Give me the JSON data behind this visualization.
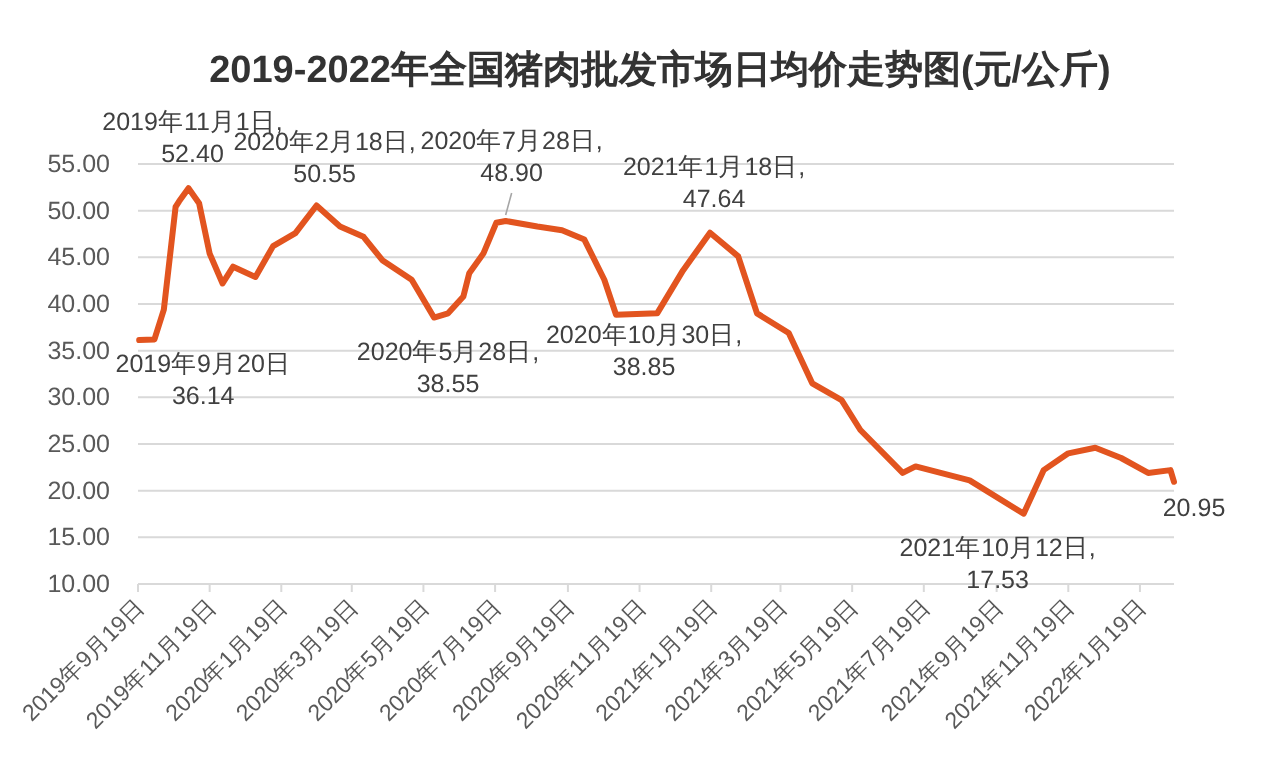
{
  "chart_data": {
    "type": "line",
    "title": "2019-2022年全国猪肉批发市场日均价走势图(元/公斤)",
    "x": [
      "2019-09-20",
      "2019-10-03",
      "2019-10-11",
      "2019-10-21",
      "2019-10-24",
      "2019-11-01",
      "2019-11-10",
      "2019-11-19",
      "2019-11-30",
      "2019-12-09",
      "2019-12-28",
      "2020-01-12",
      "2020-01-31",
      "2020-02-18",
      "2020-03-09",
      "2020-03-29",
      "2020-04-14",
      "2020-05-09",
      "2020-05-28",
      "2020-06-09",
      "2020-06-22",
      "2020-06-27",
      "2020-07-09",
      "2020-07-20",
      "2020-07-28",
      "2020-08-24",
      "2020-09-14",
      "2020-10-03",
      "2020-10-20",
      "2020-10-30",
      "2020-12-04",
      "2020-12-26",
      "2021-01-18",
      "2021-02-11",
      "2021-02-27",
      "2021-03-26",
      "2021-04-15",
      "2021-05-10",
      "2021-05-26",
      "2021-07-01",
      "2021-07-12",
      "2021-08-27",
      "2021-10-12",
      "2021-10-29",
      "2021-11-19",
      "2021-12-12",
      "2022-01-03",
      "2022-01-26",
      "2022-02-14",
      "2022-02-17"
    ],
    "series": [
      {
        "color": "#e2541f",
        "values": [
          36.14,
          36.2,
          39.4,
          50.4,
          51.0,
          52.4,
          50.8,
          45.4,
          42.2,
          44.0,
          42.9,
          46.2,
          47.6,
          50.55,
          48.3,
          47.2,
          44.7,
          42.6,
          38.55,
          39.0,
          40.8,
          43.3,
          45.4,
          48.7,
          48.9,
          48.3,
          47.9,
          46.9,
          42.6,
          38.85,
          39.0,
          43.6,
          47.64,
          45.1,
          39.0,
          36.9,
          31.5,
          29.7,
          26.5,
          21.9,
          22.6,
          21.1,
          17.53,
          22.2,
          24.0,
          24.6,
          23.5,
          21.9,
          22.2,
          20.95
        ]
      }
    ],
    "xlim": [
      "2019-09-19",
      "2022-02-17"
    ],
    "xticks": [
      {
        "value": "2019-09-19",
        "label": "2019年9月19日"
      },
      {
        "value": "2019-11-19",
        "label": "2019年11月19日"
      },
      {
        "value": "2020-01-19",
        "label": "2020年1月19日"
      },
      {
        "value": "2020-03-19",
        "label": "2020年3月19日"
      },
      {
        "value": "2020-05-19",
        "label": "2020年5月19日"
      },
      {
        "value": "2020-07-19",
        "label": "2020年7月19日"
      },
      {
        "value": "2020-09-19",
        "label": "2020年9月19日"
      },
      {
        "value": "2020-11-19",
        "label": "2020年11月19日"
      },
      {
        "value": "2021-01-19",
        "label": "2021年1月19日"
      },
      {
        "value": "2021-03-19",
        "label": "2021年3月19日"
      },
      {
        "value": "2021-05-19",
        "label": "2021年5月19日"
      },
      {
        "value": "2021-07-19",
        "label": "2021年7月19日"
      },
      {
        "value": "2021-09-19",
        "label": "2021年9月19日"
      },
      {
        "value": "2021-11-19",
        "label": "2021年11月19日"
      },
      {
        "value": "2022-01-19",
        "label": "2022年1月19日"
      }
    ],
    "ylim": [
      10,
      55
    ],
    "yticks": [
      {
        "value": 10,
        "label": "10.00"
      },
      {
        "value": 15,
        "label": "15.00"
      },
      {
        "value": 20,
        "label": "20.00"
      },
      {
        "value": 25,
        "label": "25.00"
      },
      {
        "value": 30,
        "label": "30.00"
      },
      {
        "value": 35,
        "label": "35.00"
      },
      {
        "value": 40,
        "label": "40.00"
      },
      {
        "value": 45,
        "label": "45.00"
      },
      {
        "value": 50,
        "label": "50.00"
      },
      {
        "value": 55,
        "label": "55.00"
      }
    ],
    "grid": "y",
    "marker": "none",
    "line_style": "solid",
    "annotations": [
      {
        "text": "2019年9月20日\n36.14",
        "x": "2019-09-20",
        "y": 36.14
      },
      {
        "text": "2019年11月1日,\n52.40",
        "x": "2019-11-01",
        "y": 52.4
      },
      {
        "text": "2020年2月18日,\n50.55",
        "x": "2020-02-18",
        "y": 50.55
      },
      {
        "text": "2020年5月28日,\n38.55",
        "x": "2020-05-28",
        "y": 38.55
      },
      {
        "text": "2020年7月28日,\n48.90",
        "x": "2020-07-28",
        "y": 48.9
      },
      {
        "text": "2020年10月30日,\n38.85",
        "x": "2020-10-30",
        "y": 38.85
      },
      {
        "text": "2021年1月18日,\n47.64",
        "x": "2021-01-18",
        "y": 47.64
      },
      {
        "text": "2021年10月12日,\n17.53",
        "x": "2021-10-12",
        "y": 17.53
      },
      {
        "text": "20.95",
        "x": "2022-02-17",
        "y": 20.95
      }
    ]
  }
}
